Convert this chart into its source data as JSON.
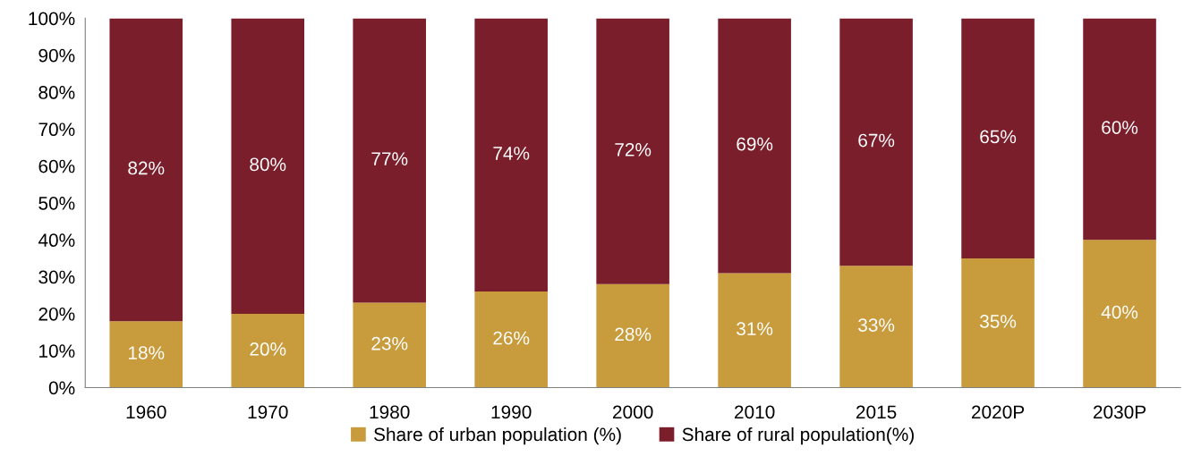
{
  "chart_data": {
    "type": "bar",
    "stacked": true,
    "categories": [
      "1960",
      "1970",
      "1980",
      "1990",
      "2000",
      "2010",
      "2015",
      "2020P",
      "2030P"
    ],
    "series": [
      {
        "name": "Share of urban population (%)",
        "color": "#c89b3c",
        "values": [
          18,
          20,
          23,
          26,
          28,
          31,
          33,
          35,
          40
        ],
        "value_labels": [
          "18%",
          "20%",
          "23%",
          "26%",
          "28%",
          "31%",
          "33%",
          "35%",
          "40%"
        ]
      },
      {
        "name": "Share of rural population(%)",
        "color": "#7b1e2b",
        "values": [
          82,
          80,
          77,
          74,
          72,
          69,
          67,
          65,
          60
        ],
        "value_labels": [
          "82%",
          "80%",
          "77%",
          "74%",
          "72%",
          "69%",
          "67%",
          "65%",
          "60%"
        ]
      }
    ],
    "ylim": [
      0,
      100
    ],
    "yticks": [
      {
        "value": 0,
        "label": "0%"
      },
      {
        "value": 10,
        "label": "10%"
      },
      {
        "value": 20,
        "label": "20%"
      },
      {
        "value": 30,
        "label": "30%"
      },
      {
        "value": 40,
        "label": "40%"
      },
      {
        "value": 50,
        "label": "50%"
      },
      {
        "value": 60,
        "label": "60%"
      },
      {
        "value": 70,
        "label": "70%"
      },
      {
        "value": 80,
        "label": "80%"
      },
      {
        "value": 90,
        "label": "90%"
      },
      {
        "value": 100,
        "label": "100%"
      }
    ],
    "grid": false,
    "legend": "bottom"
  }
}
